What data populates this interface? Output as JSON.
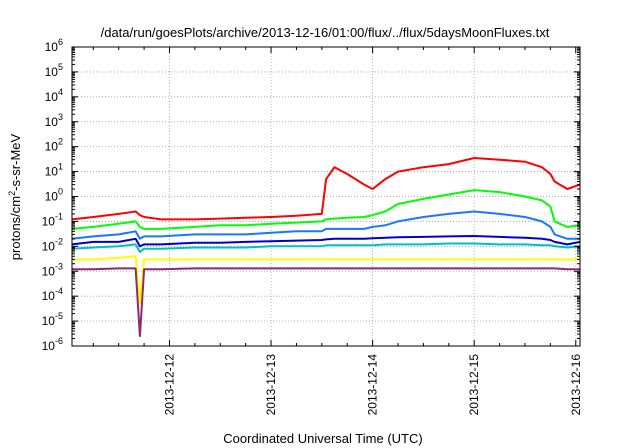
{
  "chart_data": {
    "type": "line",
    "title": "/data/run/goesPlots/archive/2013-12-16/01:00/flux/../flux/5daysMoonFluxes.txt",
    "xlabel": "Coordinated Universal Time (UTC)",
    "ylabel": "protons/cm²-s-sr-MeV",
    "ylabel_parts": {
      "pre": "protons/cm",
      "sup": "2",
      "post": "-s-sr-MeV"
    },
    "yscale": "log",
    "ylim": [
      1e-06,
      1000000.0
    ],
    "xlim": [
      "2013-12-11T00:58",
      "2013-12-16T01:00"
    ],
    "grid": true,
    "legend": "none",
    "y_ticks": [
      {
        "value": 1e-06,
        "base": "10",
        "exp": "-6"
      },
      {
        "value": 1e-05,
        "base": "10",
        "exp": "-5"
      },
      {
        "value": 0.0001,
        "base": "10",
        "exp": "-4"
      },
      {
        "value": 0.001,
        "base": "10",
        "exp": "-3"
      },
      {
        "value": 0.01,
        "base": "10",
        "exp": "-2"
      },
      {
        "value": 0.1,
        "base": "10",
        "exp": "-1"
      },
      {
        "value": 1,
        "base": "10",
        "exp": "0"
      },
      {
        "value": 10,
        "base": "10",
        "exp": "1"
      },
      {
        "value": 100,
        "base": "10",
        "exp": "2"
      },
      {
        "value": 1000,
        "base": "10",
        "exp": "3"
      },
      {
        "value": 10000,
        "base": "10",
        "exp": "4"
      },
      {
        "value": 100000,
        "base": "10",
        "exp": "5"
      },
      {
        "value": 1000000,
        "base": "10",
        "exp": "6"
      }
    ],
    "x_ticks": [
      {
        "value": "2013-12-12T00:00",
        "label": "2013-12-12"
      },
      {
        "value": "2013-12-13T00:00",
        "label": "2013-12-13"
      },
      {
        "value": "2013-12-14T00:00",
        "label": "2013-12-14"
      },
      {
        "value": "2013-12-15T00:00",
        "label": "2013-12-15"
      },
      {
        "value": "2013-12-16T00:00",
        "label": "2013-12-16"
      }
    ],
    "x": [
      "2013-12-11T00:58",
      "2013-12-11T06:00",
      "2013-12-11T12:00",
      "2013-12-11T16:00",
      "2013-12-11T17:00",
      "2013-12-11T18:00",
      "2013-12-11T22:00",
      "2013-12-12T06:00",
      "2013-12-12T12:00",
      "2013-12-12T18:00",
      "2013-12-13T00:00",
      "2013-12-13T06:00",
      "2013-12-13T12:00",
      "2013-12-13T13:00",
      "2013-12-13T15:00",
      "2013-12-13T18:00",
      "2013-12-13T22:00",
      "2013-12-14T00:00",
      "2013-12-14T03:00",
      "2013-12-14T06:00",
      "2013-12-14T12:00",
      "2013-12-14T18:00",
      "2013-12-15T00:00",
      "2013-12-15T06:00",
      "2013-12-15T12:00",
      "2013-12-15T16:00",
      "2013-12-15T18:00",
      "2013-12-15T19:00",
      "2013-12-15T22:00",
      "2013-12-16T01:00"
    ],
    "series": [
      {
        "color": "#ff0000",
        "values": [
          0.12,
          0.15,
          0.2,
          0.25,
          0.18,
          0.15,
          0.12,
          0.12,
          0.13,
          0.14,
          0.15,
          0.17,
          0.2,
          5,
          15,
          8,
          3,
          2,
          5,
          10,
          15,
          20,
          35,
          30,
          25,
          15,
          8,
          4,
          2,
          3
        ]
      },
      {
        "color": "#00ff00",
        "values": [
          0.05,
          0.06,
          0.08,
          0.1,
          0.06,
          0.05,
          0.05,
          0.06,
          0.07,
          0.07,
          0.08,
          0.09,
          0.1,
          0.12,
          0.13,
          0.14,
          0.15,
          0.18,
          0.25,
          0.5,
          0.8,
          1.2,
          1.8,
          1.5,
          1.0,
          0.7,
          0.4,
          0.1,
          0.06,
          0.07
        ]
      },
      {
        "color": "#1a78ff",
        "values": [
          0.02,
          0.025,
          0.03,
          0.04,
          0.02,
          0.025,
          0.025,
          0.03,
          0.03,
          0.03,
          0.035,
          0.04,
          0.04,
          0.05,
          0.05,
          0.05,
          0.05,
          0.06,
          0.07,
          0.1,
          0.15,
          0.2,
          0.25,
          0.2,
          0.15,
          0.1,
          0.06,
          0.03,
          0.02,
          0.02
        ]
      },
      {
        "color": "#0000cc",
        "values": [
          0.012,
          0.015,
          0.015,
          0.02,
          0.01,
          0.012,
          0.012,
          0.014,
          0.014,
          0.015,
          0.016,
          0.017,
          0.018,
          0.019,
          0.02,
          0.02,
          0.02,
          0.021,
          0.022,
          0.023,
          0.024,
          0.025,
          0.026,
          0.024,
          0.022,
          0.02,
          0.018,
          0.015,
          0.012,
          0.015
        ]
      },
      {
        "color": "#00c0c0",
        "values": [
          0.008,
          0.009,
          0.01,
          0.012,
          0.006,
          0.008,
          0.008,
          0.009,
          0.009,
          0.009,
          0.01,
          0.01,
          0.01,
          0.011,
          0.011,
          0.011,
          0.011,
          0.011,
          0.012,
          0.012,
          0.012,
          0.013,
          0.013,
          0.012,
          0.012,
          0.011,
          0.011,
          0.01,
          0.009,
          0.01
        ]
      },
      {
        "color": "#ffff00",
        "values": [
          0.003,
          0.003,
          0.0035,
          0.004,
          5e-05,
          0.003,
          0.003,
          0.003,
          0.003,
          0.003,
          0.003,
          0.003,
          0.003,
          0.003,
          0.003,
          0.003,
          0.003,
          0.003,
          0.003,
          0.003,
          0.003,
          0.003,
          0.003,
          0.003,
          0.003,
          0.003,
          0.003,
          0.003,
          0.003,
          0.003
        ]
      },
      {
        "color": "#8b2a72",
        "values": [
          0.0012,
          0.0012,
          0.0013,
          0.0013,
          2.5e-06,
          0.0012,
          0.0012,
          0.0013,
          0.0013,
          0.0013,
          0.0013,
          0.0013,
          0.0013,
          0.0013,
          0.0013,
          0.0013,
          0.0013,
          0.0013,
          0.0013,
          0.0013,
          0.0013,
          0.0013,
          0.0013,
          0.0013,
          0.0013,
          0.0013,
          0.0013,
          0.0013,
          0.0012,
          0.0012
        ]
      }
    ]
  }
}
